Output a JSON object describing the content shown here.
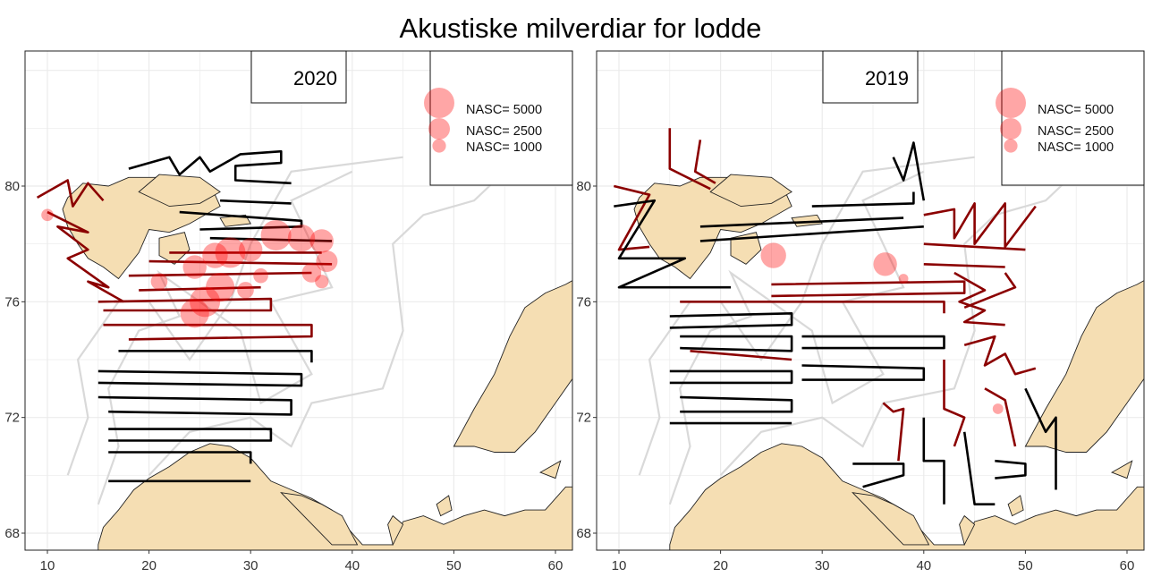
{
  "title": "Akustiske milverdiar for lodde",
  "colors": {
    "land": "#f5deb3",
    "depth": "#d9d9d9",
    "grid": "#ebebeb",
    "track_low": "#000000",
    "track_high": "#8b0000",
    "nasc": "#ff0000"
  },
  "panels": [
    {
      "year": "2020",
      "legend": [
        {
          "label": "NASC= 5000",
          "value": 5000
        },
        {
          "label": "NASC= 2500",
          "value": 2500
        },
        {
          "label": "NASC= 1000",
          "value": 1000
        }
      ],
      "x_ticks": [
        "10",
        "20",
        "30",
        "40",
        "50",
        "60"
      ],
      "y_ticks": [
        "68",
        "72",
        "76",
        "80"
      ],
      "nasc_points": [
        {
          "lon": 32.5,
          "lat": 78.3,
          "v": 5000
        },
        {
          "lon": 28.0,
          "lat": 77.7,
          "v": 5000
        },
        {
          "lon": 35.0,
          "lat": 78.2,
          "v": 4000
        },
        {
          "lon": 37.0,
          "lat": 78.1,
          "v": 3000
        },
        {
          "lon": 30.0,
          "lat": 77.8,
          "v": 3000
        },
        {
          "lon": 26.5,
          "lat": 77.6,
          "v": 3500
        },
        {
          "lon": 24.5,
          "lat": 77.2,
          "v": 3000
        },
        {
          "lon": 37.5,
          "lat": 77.4,
          "v": 2500
        },
        {
          "lon": 36.0,
          "lat": 77.0,
          "v": 2000
        },
        {
          "lon": 27.0,
          "lat": 76.5,
          "v": 4500
        },
        {
          "lon": 25.5,
          "lat": 76.0,
          "v": 5000
        },
        {
          "lon": 24.5,
          "lat": 75.6,
          "v": 4500
        },
        {
          "lon": 21.0,
          "lat": 76.7,
          "v": 1500
        },
        {
          "lon": 29.5,
          "lat": 76.4,
          "v": 1500
        },
        {
          "lon": 31.0,
          "lat": 76.9,
          "v": 1200
        },
        {
          "lon": 10.0,
          "lat": 79.0,
          "v": 800
        },
        {
          "lon": 37.0,
          "lat": 76.7,
          "v": 1000
        }
      ]
    },
    {
      "year": "2019",
      "legend": [
        {
          "label": "NASC= 5000",
          "value": 5000
        },
        {
          "label": "NASC= 2500",
          "value": 2500
        },
        {
          "label": "NASC= 1000",
          "value": 1000
        }
      ],
      "x_ticks": [
        "10",
        "20",
        "30",
        "40",
        "50",
        "60"
      ],
      "y_ticks": [
        "68",
        "72",
        "76",
        "80"
      ],
      "nasc_points": [
        {
          "lon": 25.2,
          "lat": 77.6,
          "v": 3500
        },
        {
          "lon": 36.2,
          "lat": 77.3,
          "v": 3000
        },
        {
          "lon": 47.3,
          "lat": 72.3,
          "v": 600
        },
        {
          "lon": 38.0,
          "lat": 76.8,
          "v": 500
        }
      ]
    }
  ]
}
